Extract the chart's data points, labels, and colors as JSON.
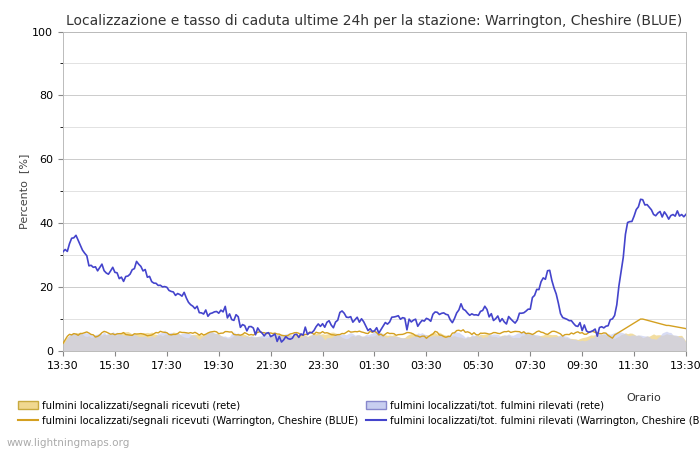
{
  "title": "Localizzazione e tasso di caduta ultime 24h per la stazione: Warrington, Cheshire (BLUE)",
  "ylabel": "Percento  [%]",
  "ylim": [
    0,
    100
  ],
  "watermark": "www.lightningmaps.org",
  "x_labels": [
    "13:30",
    "15:30",
    "17:30",
    "19:30",
    "21:30",
    "23:30",
    "01:30",
    "03:30",
    "05:30",
    "07:30",
    "09:30",
    "11:30",
    "13:30"
  ],
  "n_points": 289,
  "background_color": "#ffffff",
  "plot_bg_color": "#ffffff",
  "grid_color": "#cccccc",
  "orario_label": "Orario",
  "title_fontsize": 10,
  "axis_fontsize": 8,
  "tick_fontsize": 8,
  "fill_net_signal_color": "#f0d890",
  "fill_net_total_color": "#c8cef0",
  "line_station_signal_color": "#d4a020",
  "line_station_total_color": "#4444cc"
}
